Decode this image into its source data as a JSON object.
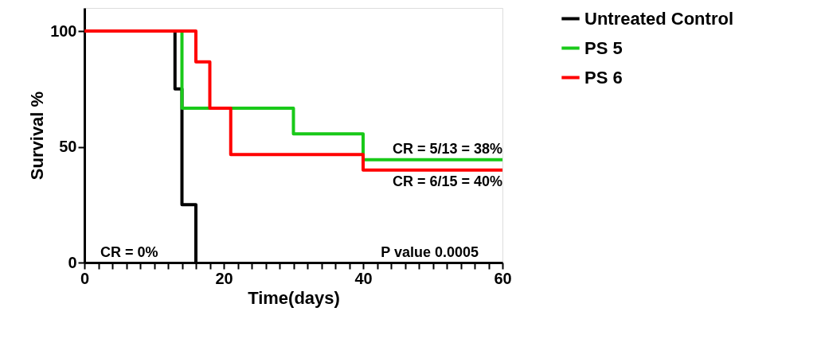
{
  "chart_data": {
    "type": "step",
    "xlabel": "Time(days)",
    "ylabel": "Survival %",
    "xlim": [
      0,
      60
    ],
    "ylim": [
      0,
      110
    ],
    "xticks": [
      0,
      {
        "value": 2,
        "label": null
      },
      {
        "value": 4,
        "label": null
      },
      {
        "value": 6,
        "label": null
      },
      {
        "value": 8,
        "label": null
      },
      {
        "value": 10,
        "label": null
      },
      {
        "value": 12,
        "label": null
      },
      {
        "value": 14,
        "label": null
      },
      {
        "value": 16,
        "label": null
      },
      {
        "value": 18,
        "label": null
      },
      20,
      {
        "value": 22,
        "label": null
      },
      {
        "value": 24,
        "label": null
      },
      {
        "value": 26,
        "label": null
      },
      {
        "value": 28,
        "label": null
      },
      {
        "value": 30,
        "label": null
      },
      {
        "value": 32,
        "label": null
      },
      {
        "value": 34,
        "label": null
      },
      {
        "value": 36,
        "label": null
      },
      {
        "value": 38,
        "label": null
      },
      40,
      {
        "value": 42,
        "label": null
      },
      {
        "value": 44,
        "label": null
      },
      {
        "value": 46,
        "label": null
      },
      {
        "value": 48,
        "label": null
      },
      {
        "value": 50,
        "label": null
      },
      {
        "value": 52,
        "label": null
      },
      {
        "value": 54,
        "label": null
      },
      {
        "value": 56,
        "label": null
      },
      {
        "value": 58,
        "label": null
      },
      60
    ],
    "yticks": [
      0,
      50,
      100
    ],
    "series": [
      {
        "name": "Untreated Control",
        "color": "#000000",
        "x": [
          0,
          13,
          14,
          16
        ],
        "values": [
          100,
          75,
          25,
          0
        ]
      },
      {
        "name": "PS 5",
        "color": "#19c919",
        "x": [
          0,
          14,
          30,
          40,
          60
        ],
        "values": [
          100,
          66.7,
          55.6,
          44.4,
          44.4
        ]
      },
      {
        "name": "PS 6",
        "color": "#ff0000",
        "x": [
          0,
          16,
          18,
          21,
          40,
          60
        ],
        "values": [
          100,
          86.7,
          66.7,
          46.7,
          40,
          40
        ]
      }
    ],
    "annotations": [
      {
        "text": "CR = 5/13 = 38%",
        "x": 60,
        "y": 44.4
      },
      {
        "text": "CR = 6/15 = 40%",
        "x": 60,
        "y": 40
      },
      "CR = 0%",
      "P value 0.0005"
    ],
    "legend": "right",
    "grid": false,
    "line_style": "solid"
  }
}
